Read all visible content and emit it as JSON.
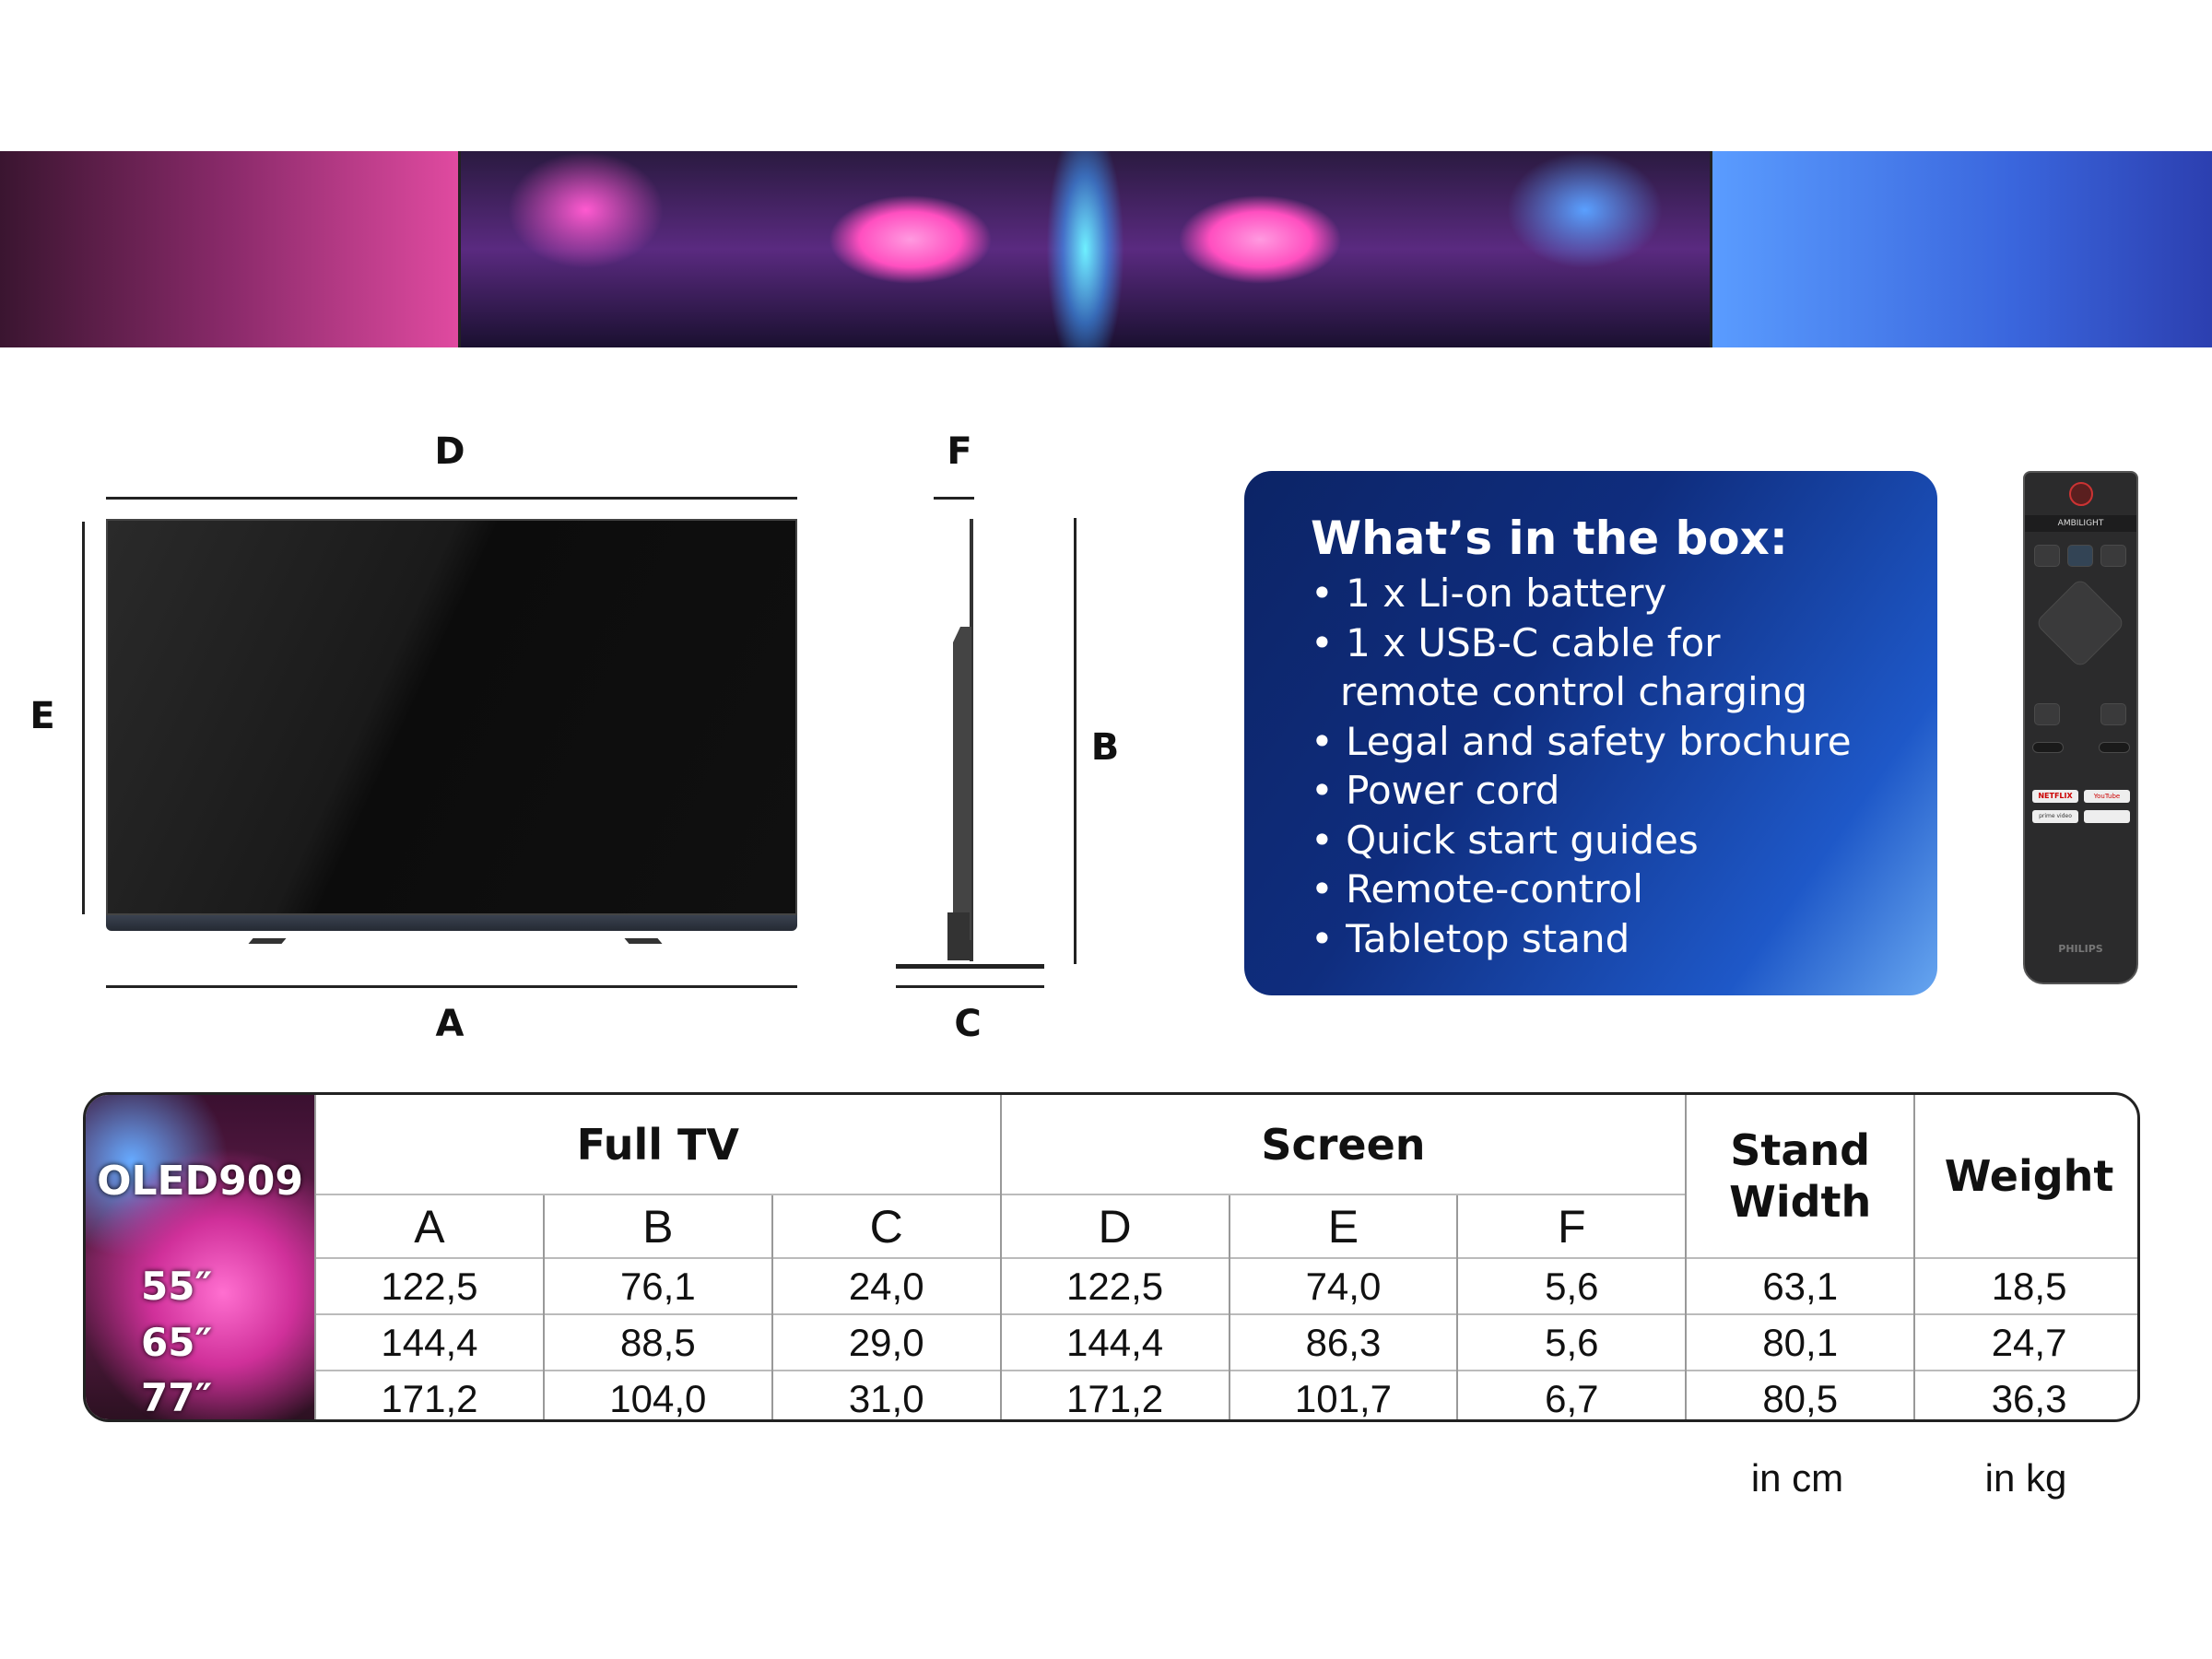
{
  "diagram": {
    "labels": {
      "A": "A",
      "B": "B",
      "C": "C",
      "D": "D",
      "E": "E",
      "F": "F"
    }
  },
  "box": {
    "title": "What’s in the box:",
    "items": [
      "1 x Li-on battery",
      "1 x USB-C cable for remote control charging",
      "Legal and safety brochure",
      "Power cord",
      "Quick start guides",
      "Remote-control",
      "Tabletop stand"
    ],
    "gradient_colors": [
      "#0c2466",
      "#67a6f0"
    ]
  },
  "remote": {
    "top_label": "AMBILIGHT",
    "brand": "PHILIPS",
    "buttons": [
      "NETFLIX",
      "YouTube",
      "prime video"
    ]
  },
  "table": {
    "model": "OLED909",
    "groups": [
      "Full TV",
      "Screen",
      "Stand Width",
      "Weight"
    ],
    "columns": [
      "A",
      "B",
      "C",
      "D",
      "E",
      "F"
    ],
    "rows": [
      {
        "size": "55″",
        "values": [
          "122,5",
          "76,1",
          "24,0",
          "122,5",
          "74,0",
          "5,6",
          "63,1",
          "18,5"
        ]
      },
      {
        "size": "65″",
        "values": [
          "144,4",
          "88,5",
          "29,0",
          "144,4",
          "86,3",
          "5,6",
          "80,1",
          "24,7"
        ]
      },
      {
        "size": "77″",
        "values": [
          "171,2",
          "104,0",
          "31,0",
          "171,2",
          "101,7",
          "6,7",
          "80,5",
          "36,3"
        ]
      }
    ],
    "units": [
      "in cm",
      "in kg"
    ]
  }
}
